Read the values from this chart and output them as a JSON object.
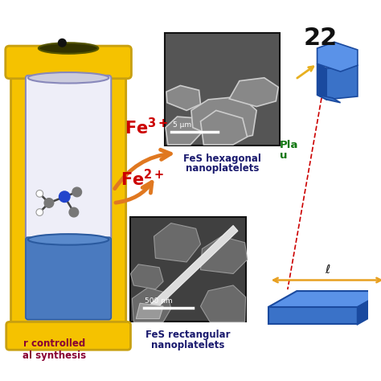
{
  "bg_color": "#ffffff",
  "autoclave_yellow": "#f5c200",
  "autoclave_yellow_dark": "#c8a010",
  "inner_bg": "#eeeef8",
  "liquid_color": "#4a7abf",
  "liquid_dark": "#2a5a9f",
  "arrow_color": "#e07820",
  "fe_color": "#cc0000",
  "hex_label1": "FeS hexagonal",
  "hex_label2": "nanoplatelets",
  "rect_label1": "FeS rectangular",
  "rect_label2": "nanoplatelets",
  "bottom_label1": "r controlled",
  "bottom_label2": "al synthesis",
  "platelet_label1": "Pla",
  "platelet_label2": "u",
  "number_label": "22",
  "hex_scale": "5 μm",
  "rect_scale": "500 nm",
  "l_label": "ℓ",
  "blue3d": "#3a72c8",
  "blue3d_dark": "#1a4a9f",
  "blue3d_light": "#5a92e8",
  "dashed_color": "#cc0000",
  "arrow_l_color": "#e8a020",
  "label_color": "#1a1a6e"
}
